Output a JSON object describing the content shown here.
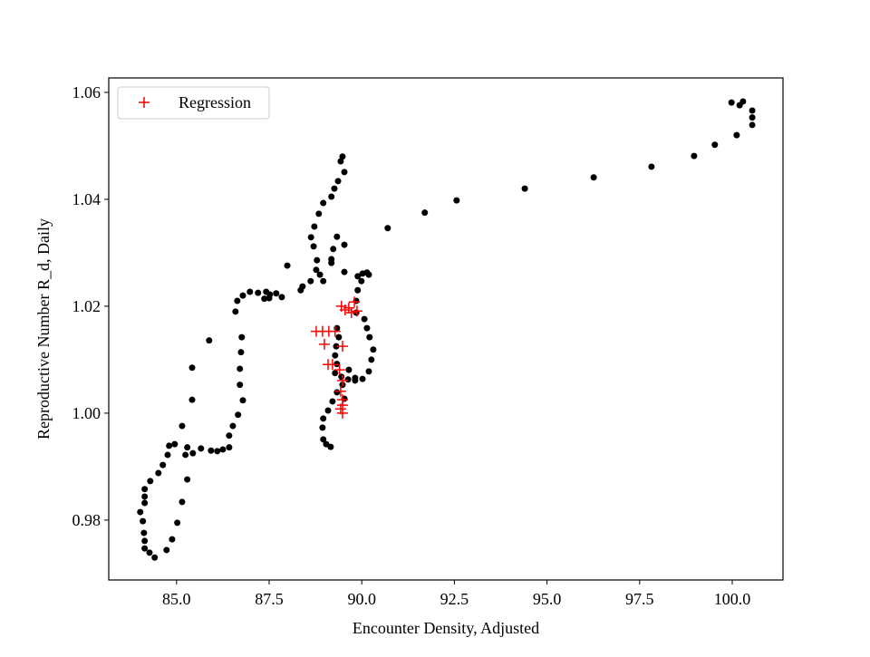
{
  "chart_data": {
    "type": "scatter",
    "xlabel": "Encounter Density, Adjusted",
    "ylabel": "Reproductive Number R_d, Daily",
    "xlim": [
      83.17,
      101.37
    ],
    "ylim": [
      0.9688,
      1.0627
    ],
    "xticks": [
      {
        "value": 85,
        "label": "85.0"
      },
      87.5,
      {
        "value": 90,
        "label": "90.0"
      },
      92.5,
      {
        "value": 95,
        "label": "95.0"
      },
      97.5,
      {
        "value": 100,
        "label": "100.0"
      }
    ],
    "yticks": [
      0.98,
      {
        "value": 1,
        "label": "1.00"
      },
      1.02,
      1.04,
      1.06
    ],
    "grid": false,
    "legend": "upper left",
    "series": [
      {
        "color": "#000000",
        "marker": "circle",
        "x": [
          99.98,
          100.2,
          100.29,
          100.54,
          100.54,
          100.54,
          100.12,
          99.53,
          98.97,
          97.82,
          96.26,
          94.4,
          92.56,
          91.7,
          90.7,
          89.48,
          89.43,
          89.53,
          89.36,
          89.26,
          89.18,
          88.96,
          88.84,
          88.72,
          88.63,
          88.7,
          88.79,
          88.77,
          88.87,
          88.96,
          88.62,
          88.4,
          87.99,
          88.35,
          89.18,
          89.23,
          89.33,
          89.53,
          89.18,
          87.84,
          87.52,
          87.37,
          87.2,
          86.98,
          86.79,
          86.64,
          86.59,
          86.76,
          86.74,
          86.71,
          86.71,
          86.79,
          86.66,
          86.52,
          86.42,
          86.42,
          86.25,
          86.1,
          85.93,
          85.66,
          85.44,
          85.29,
          85.24,
          85.29,
          85.15,
          85.02,
          84.88,
          84.73,
          84.41,
          84.27,
          84.14,
          84.14,
          84.12,
          84.09,
          84.02,
          84.14,
          84.14,
          84.14,
          84.29,
          84.51,
          84.63,
          84.76,
          84.8,
          84.95,
          85.15,
          85.42,
          85.42,
          85.88,
          87.42,
          87.69,
          87.5,
          89.53,
          89.89,
          90.02,
          90.14,
          90.19,
          89.99,
          89.89,
          89.85,
          89.85,
          90.07,
          90.14,
          90.21,
          90.31,
          90.26,
          90.19,
          90.02,
          89.82,
          89.63,
          89.45,
          89.28,
          89.33,
          89.28,
          89.31,
          89.38,
          89.33,
          89.48,
          89.33,
          89.21,
          89.09,
          88.96,
          88.94,
          88.96,
          89.04,
          89.16,
          89.53,
          89.65,
          89.82
        ],
        "values": [
          1.0581,
          1.0576,
          1.0583,
          1.0566,
          1.0553,
          1.0539,
          1.052,
          1.0502,
          1.0481,
          1.0461,
          1.0441,
          1.042,
          1.0398,
          1.0375,
          1.0346,
          1.048,
          1.0471,
          1.0451,
          1.0434,
          1.042,
          1.0405,
          1.0393,
          1.0373,
          1.0349,
          1.0329,
          1.0312,
          1.0286,
          1.0268,
          1.0259,
          1.0247,
          1.0247,
          1.0237,
          1.0276,
          1.023,
          1.0281,
          1.0307,
          1.033,
          1.0315,
          1.0288,
          1.0217,
          1.0222,
          1.0214,
          1.0225,
          1.0227,
          1.022,
          1.021,
          1.019,
          1.0142,
          1.0114,
          1.0083,
          1.0053,
          1.0024,
          0.9997,
          0.9976,
          0.9958,
          0.9936,
          0.9932,
          0.9929,
          0.993,
          0.9934,
          0.9925,
          0.9936,
          0.9922,
          0.9876,
          0.9834,
          0.9795,
          0.9764,
          0.9744,
          0.973,
          0.9739,
          0.9761,
          0.9747,
          0.9776,
          0.9798,
          0.9815,
          0.9832,
          0.9858,
          0.9844,
          0.9873,
          0.9888,
          0.9903,
          0.9922,
          0.9939,
          0.9942,
          0.9976,
          1.0025,
          1.0085,
          1.0136,
          1.0227,
          1.0224,
          1.0215,
          1.0264,
          1.0256,
          1.0261,
          1.0263,
          1.0259,
          1.0247,
          1.023,
          1.021,
          1.0188,
          1.0176,
          1.0159,
          1.0142,
          1.0119,
          1.01,
          1.0078,
          1.0064,
          1.0061,
          1.0063,
          1.0068,
          1.0075,
          1.0092,
          1.0108,
          1.0125,
          1.0142,
          1.0159,
          1.0053,
          1.0039,
          1.0022,
          1.0005,
          0.999,
          0.9973,
          0.9951,
          0.9942,
          0.9937,
          1.0027,
          1.0081,
          1.0066
        ]
      },
      {
        "name": "Regression",
        "color": "#ff0000",
        "marker": "plus",
        "x": [
          89.45,
          89.55,
          89.72,
          89.87,
          89.65,
          89.8,
          88.77,
          88.94,
          89.11,
          89.28,
          88.99,
          89.48,
          89.09,
          89.21,
          89.4,
          89.48,
          89.43,
          89.48,
          89.48,
          89.48,
          89.43
        ],
        "values": [
          1.02,
          1.0193,
          1.0188,
          1.0191,
          1.0197,
          1.0208,
          1.0153,
          1.0153,
          1.0153,
          1.0153,
          1.0129,
          1.0125,
          1.0091,
          1.0091,
          1.0081,
          1.0061,
          1.0041,
          1.0025,
          1.0015,
          1.0,
          1.0008
        ]
      }
    ]
  }
}
